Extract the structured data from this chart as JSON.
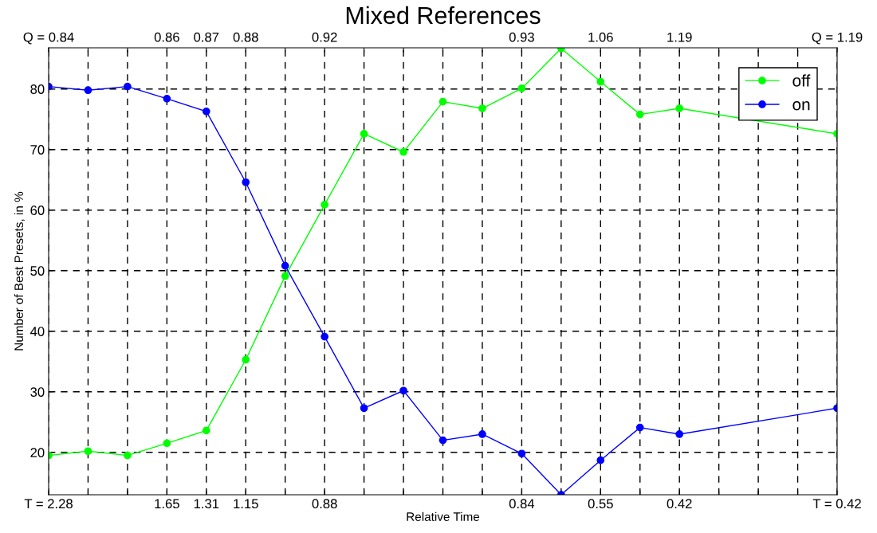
{
  "chart_data": {
    "type": "line",
    "title": "Mixed References",
    "xlabel": "Relative Time",
    "ylabel": "Number of Best Presets, in %",
    "categories": [
      "T = 2.28",
      null,
      null,
      "1.65",
      "1.31",
      "1.15",
      null,
      "0.88",
      null,
      null,
      null,
      null,
      "0.84",
      null,
      "0.55",
      null,
      "0.42",
      null,
      null,
      null,
      "T = 0.42"
    ],
    "annotations": [
      "Q = 0.84",
      "0.86",
      "0.87",
      "0.88",
      "0.92",
      "0.93",
      "1.06",
      "1.19",
      "Q = 1.19"
    ],
    "series": [
      {
        "name": "off",
        "color": "#00ff00",
        "values": [
          19.5,
          20.2,
          19.5,
          21.5,
          23.6,
          35.3,
          49.1,
          60.9,
          72.6,
          69.6,
          77.9,
          76.8,
          80.1,
          86.7,
          81.2,
          75.8,
          76.8,
          null,
          null,
          null,
          72.6
        ]
      },
      {
        "name": "on",
        "color": "#0000ff",
        "values": [
          80.4,
          79.8,
          80.4,
          78.4,
          76.3,
          64.6,
          50.8,
          39.1,
          27.3,
          30.2,
          22.0,
          23.0,
          19.8,
          13.0,
          18.7,
          24.1,
          23.0,
          null,
          null,
          null,
          27.3
        ]
      }
    ],
    "ylim": [
      13,
      86.8
    ],
    "yticks": [
      20,
      30,
      40,
      50,
      60,
      70,
      80
    ],
    "grid": true,
    "legend": "top right",
    "marker": "circle",
    "line_style": "solid"
  }
}
